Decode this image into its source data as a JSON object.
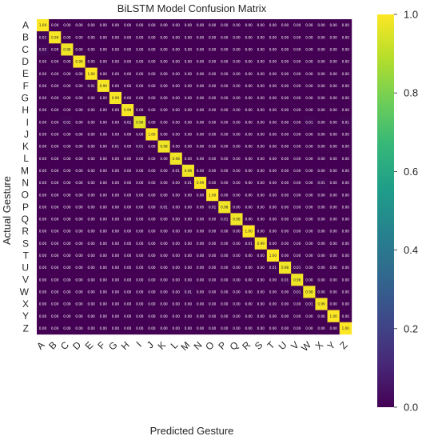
{
  "chart_data": {
    "type": "heatmap",
    "title": "BiLSTM Model Confusion Matrix",
    "xlabel": "Predicted Gesture",
    "ylabel": "Actual Gesture",
    "labels": [
      "A",
      "B",
      "C",
      "D",
      "E",
      "F",
      "G",
      "H",
      "I",
      "J",
      "K",
      "L",
      "M",
      "N",
      "O",
      "P",
      "Q",
      "R",
      "S",
      "T",
      "U",
      "V",
      "W",
      "X",
      "Y",
      "Z"
    ],
    "diagonal": [
      1.0,
      0.99,
      0.98,
      0.99,
      1.0,
      0.99,
      0.99,
      0.99,
      0.96,
      1.0,
      0.98,
      0.98,
      0.98,
      0.99,
      1.0,
      0.98,
      0.98,
      1.0,
      0.99,
      1.0,
      0.98,
      0.98,
      0.98,
      0.99,
      1.0,
      1.0
    ],
    "off_diagonal": [
      {
        "row": "B",
        "col": "A",
        "value": 0.01
      },
      {
        "row": "C",
        "col": "A",
        "value": 0.02
      },
      {
        "row": "F",
        "col": "E",
        "value": 0.01
      },
      {
        "row": "I",
        "col": "C",
        "value": 0.01
      },
      {
        "row": "I",
        "col": "H",
        "value": 0.01
      },
      {
        "row": "I",
        "col": "W",
        "value": 0.01
      },
      {
        "row": "I",
        "col": "Z",
        "value": 0.01
      },
      {
        "row": "K",
        "col": "G",
        "value": 0.01
      },
      {
        "row": "K",
        "col": "I",
        "value": 0.01
      },
      {
        "row": "M",
        "col": "L",
        "value": 0.01
      },
      {
        "row": "N",
        "col": "M",
        "value": 0.01
      },
      {
        "row": "N",
        "col": "X",
        "value": 0.01
      },
      {
        "row": "P",
        "col": "K",
        "value": 0.01
      },
      {
        "row": "P",
        "col": "O",
        "value": 0.01
      },
      {
        "row": "Q",
        "col": "P",
        "value": 0.01
      },
      {
        "row": "S",
        "col": "R",
        "value": 0.01
      },
      {
        "row": "U",
        "col": "T",
        "value": 0.01
      },
      {
        "row": "U",
        "col": "V",
        "value": 0.01
      },
      {
        "row": "V",
        "col": "U",
        "value": 0.01
      },
      {
        "row": "W",
        "col": "V",
        "value": 0.01
      },
      {
        "row": "W",
        "col": "M",
        "value": 0.01
      },
      {
        "row": "X",
        "col": "W",
        "value": 0.01
      }
    ],
    "value_format": "0.00",
    "colorbar": {
      "colormap": "viridis",
      "range": [
        0.0,
        1.0
      ],
      "ticks": [
        "0.0",
        "0.2",
        "0.4",
        "0.6",
        "0.8",
        "1.0"
      ]
    },
    "colors": [
      "#440154",
      "#482878",
      "#3e4989",
      "#31688e",
      "#26828e",
      "#1f9e89",
      "#35b779",
      "#6ece58",
      "#b5de2b",
      "#fde725"
    ]
  }
}
